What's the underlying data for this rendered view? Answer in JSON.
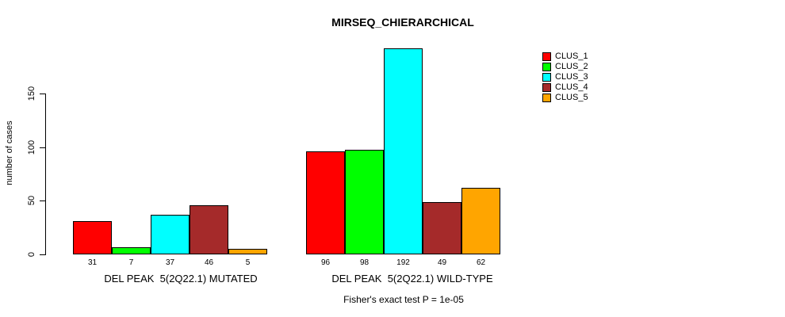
{
  "chart_data": {
    "type": "bar",
    "title": "MIRSEQ_CHIERARCHICAL",
    "ylabel": "number of cases",
    "xlabel": "",
    "yticks": [
      0,
      50,
      100,
      150
    ],
    "ylim": [
      0,
      150
    ],
    "grid": false,
    "legend_position": "top-right",
    "series_labels": [
      "CLUS_1",
      "CLUS_2",
      "CLUS_3",
      "CLUS_4",
      "CLUS_5"
    ],
    "series_colors": [
      "#ff0000",
      "#00ff00",
      "#00ffff",
      "#a52a2a",
      "#ffa500"
    ],
    "groups": [
      {
        "label": "DEL PEAK  5(2Q22.1) MUTATED",
        "values": [
          31,
          7,
          37,
          46,
          5
        ]
      },
      {
        "label": "DEL PEAK  5(2Q22.1) WILD-TYPE",
        "values": [
          96,
          98,
          192,
          49,
          62
        ]
      }
    ],
    "annotation": "Fisher's exact test P = 1e-05"
  },
  "legend": {
    "items": [
      {
        "label": "CLUS_1",
        "color": "#ff0000"
      },
      {
        "label": "CLUS_2",
        "color": "#00ff00"
      },
      {
        "label": "CLUS_3",
        "color": "#00ffff"
      },
      {
        "label": "CLUS_4",
        "color": "#a52a2a"
      },
      {
        "label": "CLUS_5",
        "color": "#ffa500"
      }
    ]
  },
  "colors": {
    "background": "#ffffff",
    "axis": "#000000",
    "text": "#000000"
  }
}
